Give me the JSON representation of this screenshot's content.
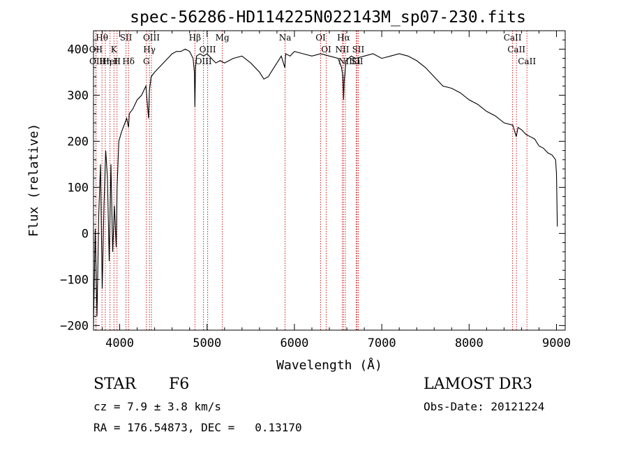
{
  "chart_data": {
    "type": "line",
    "title": "spec-56286-HD114225N022143M_sp07-230.fits",
    "xlabel": "Wavelength (Å)",
    "ylabel": "Flux (relative)",
    "xlim": [
      3700,
      9100
    ],
    "ylim": [
      -210,
      440
    ],
    "xticks": [
      4000,
      5000,
      6000,
      7000,
      8000,
      9000
    ],
    "yticks": [
      -200,
      -100,
      0,
      100,
      200,
      300,
      400
    ],
    "grid": false,
    "series": [
      {
        "name": "flux",
        "x": [
          3700,
          3720,
          3740,
          3760,
          3780,
          3800,
          3820,
          3840,
          3860,
          3880,
          3900,
          3920,
          3940,
          3960,
          3970,
          3990,
          4020,
          4060,
          4080,
          4101,
          4110,
          4150,
          4200,
          4250,
          4300,
          4330,
          4340,
          4360,
          4400,
          4450,
          4500,
          4550,
          4600,
          4650,
          4700,
          4750,
          4800,
          4840,
          4855,
          4861,
          4868,
          4880,
          4920,
          4960,
          5000,
          5050,
          5100,
          5150,
          5200,
          5300,
          5400,
          5500,
          5600,
          5650,
          5700,
          5750,
          5800,
          5850,
          5890,
          5900,
          5950,
          6000,
          6100,
          6200,
          6300,
          6400,
          6500,
          6540,
          6555,
          6563,
          6570,
          6590,
          6650,
          6700,
          6800,
          6900,
          7000,
          7100,
          7200,
          7300,
          7400,
          7500,
          7600,
          7700,
          7800,
          7900,
          8000,
          8100,
          8200,
          8300,
          8400,
          8500,
          8540,
          8560,
          8600,
          8650,
          8700,
          8750,
          8800,
          8850,
          8900,
          8950,
          8990,
          9000,
          9010
        ],
        "values": [
          -200,
          10,
          -180,
          40,
          150,
          -120,
          60,
          180,
          120,
          -60,
          150,
          -40,
          60,
          -30,
          100,
          200,
          220,
          240,
          250,
          230,
          260,
          270,
          290,
          300,
          320,
          250,
          310,
          340,
          350,
          360,
          370,
          380,
          390,
          395,
          395,
          400,
          395,
          380,
          350,
          275,
          360,
          385,
          390,
          385,
          390,
          380,
          370,
          375,
          370,
          380,
          385,
          370,
          350,
          335,
          340,
          355,
          370,
          385,
          360,
          390,
          385,
          395,
          390,
          385,
          390,
          385,
          380,
          360,
          340,
          290,
          330,
          375,
          385,
          380,
          385,
          390,
          380,
          385,
          390,
          385,
          375,
          360,
          340,
          320,
          315,
          305,
          290,
          280,
          265,
          255,
          240,
          235,
          210,
          230,
          225,
          215,
          210,
          205,
          190,
          185,
          175,
          170,
          160,
          130,
          15
        ]
      }
    ],
    "lines": [
      {
        "label": "Hθ",
        "wave": 3797
      },
      {
        "label": "OII",
        "wave": 3727
      },
      {
        "label": "OII",
        "wave": 3729
      },
      {
        "label": "Hη",
        "wave": 3835
      },
      {
        "label": "K",
        "wave": 3934
      },
      {
        "label": "HeI",
        "wave": 3889
      },
      {
        "label": "H",
        "wave": 3969
      },
      {
        "label": "SII",
        "wave": 4072
      },
      {
        "label": "Hδ",
        "wave": 4101
      },
      {
        "label": "OIII",
        "wave": 4363
      },
      {
        "label": "Hγ",
        "wave": 4340
      },
      {
        "label": "G",
        "wave": 4305
      },
      {
        "label": "Hβ",
        "wave": 4861
      },
      {
        "label": "OIII",
        "wave": 5007
      },
      {
        "label": "OIII",
        "wave": 4959
      },
      {
        "label": "Mg",
        "wave": 5175
      },
      {
        "label": "Na",
        "wave": 5893
      },
      {
        "label": "OI",
        "wave": 6300
      },
      {
        "label": "OI",
        "wave": 6364
      },
      {
        "label": "Hα",
        "wave": 6563
      },
      {
        "label": "NII",
        "wave": 6548
      },
      {
        "label": "NII",
        "wave": 6583
      },
      {
        "label": "SII",
        "wave": 6717
      },
      {
        "label": "Li",
        "wave": 6707
      },
      {
        "label": "SII",
        "wave": 6731
      },
      {
        "label": "CaII",
        "wave": 8498
      },
      {
        "label": "CaII",
        "wave": 8542
      },
      {
        "label": "CaII",
        "wave": 8662
      }
    ]
  },
  "info": {
    "object_class": "STAR",
    "subclass": "F6",
    "survey": "LAMOST DR3",
    "cz": "cz = 7.9 ± 3.8 km/s",
    "obs_date": "Obs-Date: 20121224",
    "coords": "RA = 176.54873, DEC =   0.13170"
  },
  "colors": {
    "line": "#000000",
    "marker": "#d01818"
  }
}
